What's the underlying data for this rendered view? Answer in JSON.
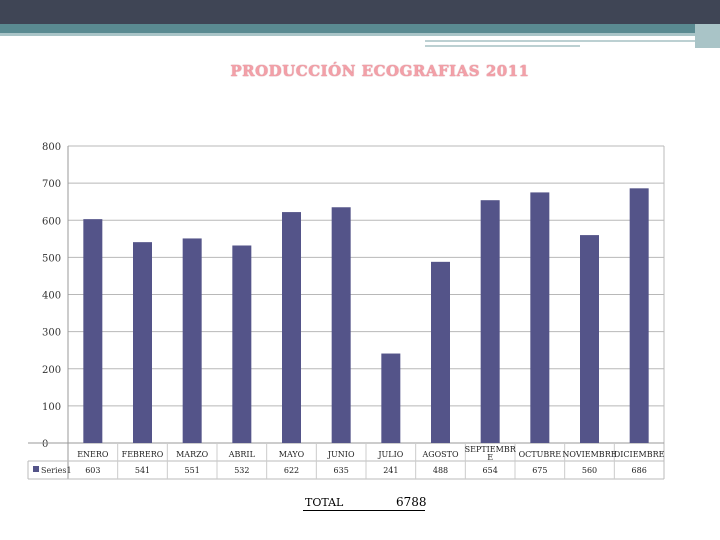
{
  "title": "PRODUCCIÓN ECOGRAFIAS 2011",
  "colors": {
    "bar": "#545489",
    "grid": "#b8b8b8",
    "title": "#f3a0a8"
  },
  "chart_data": {
    "type": "bar",
    "title": "PRODUCCIÓN ECOGRAFIAS 2011",
    "categories": [
      "ENERO",
      "FEBRERO",
      "MARZO",
      "ABRIL",
      "MAYO",
      "JUNIO",
      "JULIO",
      "AGOSTO",
      "SEPTIEMBRE",
      "OCTUBRE",
      "NOVIEMBRE",
      "DICIEMBRE"
    ],
    "category_display": [
      "ENERO",
      "FEBRERO",
      "MARZO",
      "ABRIL",
      "MAYO",
      "JUNIO",
      "JULIO",
      "AGOSTO",
      "SEPTIEMBR|E",
      "OCTUBRE",
      "NOVIEMBRE",
      "DICIEMBRE"
    ],
    "series": [
      {
        "name": "Series1",
        "values": [
          603,
          541,
          551,
          532,
          622,
          635,
          241,
          488,
          654,
          675,
          560,
          686
        ]
      }
    ],
    "value_labels": [
      "603",
      "541",
      "551",
      "532",
      "622",
      "635",
      "241",
      "488",
      "654",
      "675",
      "560",
      "686"
    ],
    "ylim": [
      0,
      800
    ],
    "yticks": [
      0,
      100,
      200,
      300,
      400,
      500,
      600,
      700,
      800
    ],
    "grid": true,
    "legend": "data-table-left"
  },
  "total": {
    "label": "TOTAL",
    "value": "6788"
  }
}
